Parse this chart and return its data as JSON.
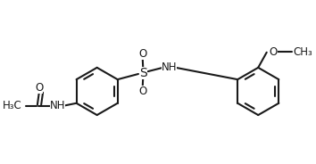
{
  "bg_color": "#ffffff",
  "line_color": "#1a1a1a",
  "line_width": 1.5,
  "fig_width": 3.54,
  "fig_height": 1.84,
  "dpi": 100,
  "font_size": 8.5,
  "r": 0.28,
  "lrx": 1.05,
  "lry": 0.95,
  "rrx": 2.95,
  "rry": 0.95,
  "xlim": [
    0.05,
    3.54
  ],
  "ylim": [
    0.28,
    1.84
  ]
}
